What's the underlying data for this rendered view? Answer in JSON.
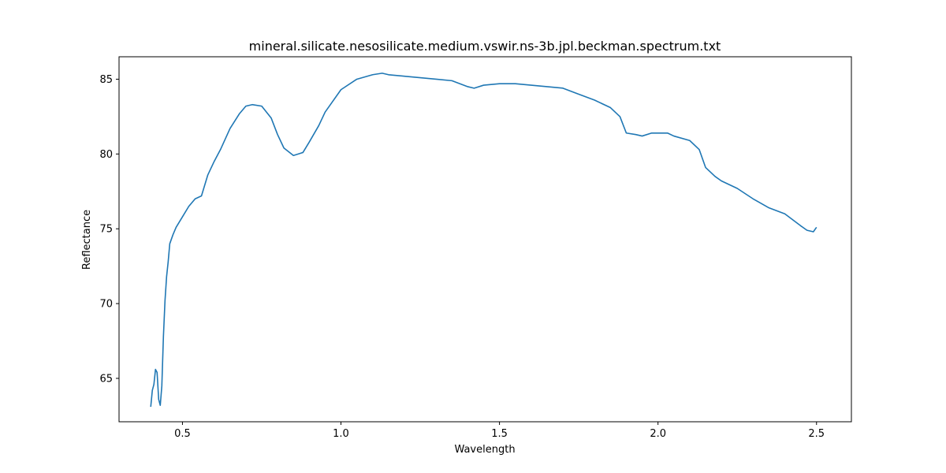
{
  "chart_data": {
    "type": "line",
    "title": "mineral.silicate.nesosilicate.medium.vswir.ns-3b.jpl.beckman.spectrum.txt",
    "xlabel": "Wavelength",
    "ylabel": "Reflectance",
    "xlim": [
      0.3,
      2.61
    ],
    "ylim": [
      62.1,
      86.5
    ],
    "xticks": [
      0.5,
      1.0,
      1.5,
      2.0,
      2.5
    ],
    "xtick_labels": [
      "0.5",
      "1.0",
      "1.5",
      "2.0",
      "2.5"
    ],
    "yticks": [
      65,
      70,
      75,
      80,
      85
    ],
    "ytick_labels": [
      "65",
      "70",
      "75",
      "80",
      "85"
    ],
    "grid": false,
    "line_color": "#1f77b4",
    "series": [
      {
        "x": [
          0.4,
          0.405,
          0.41,
          0.415,
          0.42,
          0.425,
          0.43,
          0.435,
          0.44,
          0.445,
          0.45,
          0.455,
          0.46,
          0.47,
          0.48,
          0.5,
          0.52,
          0.54,
          0.56,
          0.58,
          0.6,
          0.62,
          0.65,
          0.68,
          0.7,
          0.72,
          0.75,
          0.78,
          0.8,
          0.82,
          0.85,
          0.88,
          0.9,
          0.93,
          0.95,
          1.0,
          1.05,
          1.1,
          1.13,
          1.15,
          1.2,
          1.25,
          1.3,
          1.35,
          1.4,
          1.42,
          1.45,
          1.5,
          1.55,
          1.6,
          1.65,
          1.7,
          1.75,
          1.8,
          1.85,
          1.88,
          1.9,
          1.93,
          1.95,
          1.98,
          2.0,
          2.03,
          2.05,
          2.1,
          2.13,
          2.15,
          2.18,
          2.2,
          2.25,
          2.3,
          2.35,
          2.4,
          2.45,
          2.47,
          2.49,
          2.5
        ],
        "y": [
          63.1,
          64.2,
          64.6,
          65.6,
          65.4,
          63.6,
          63.2,
          64.5,
          67.8,
          70.2,
          71.8,
          72.8,
          74.0,
          74.6,
          75.1,
          75.8,
          76.5,
          77.0,
          77.2,
          78.6,
          79.5,
          80.3,
          81.7,
          82.7,
          83.2,
          83.3,
          83.2,
          82.4,
          81.3,
          80.4,
          79.9,
          80.1,
          80.8,
          81.9,
          82.8,
          84.3,
          85.0,
          85.3,
          85.4,
          85.3,
          85.2,
          85.1,
          85.0,
          84.9,
          84.5,
          84.4,
          84.6,
          84.7,
          84.7,
          84.6,
          84.5,
          84.4,
          84.0,
          83.6,
          83.1,
          82.5,
          81.4,
          81.3,
          81.2,
          81.4,
          81.4,
          81.4,
          81.2,
          80.9,
          80.3,
          79.1,
          78.5,
          78.2,
          77.7,
          77.0,
          76.4,
          76.0,
          75.2,
          74.9,
          74.8,
          75.1
        ]
      }
    ]
  }
}
